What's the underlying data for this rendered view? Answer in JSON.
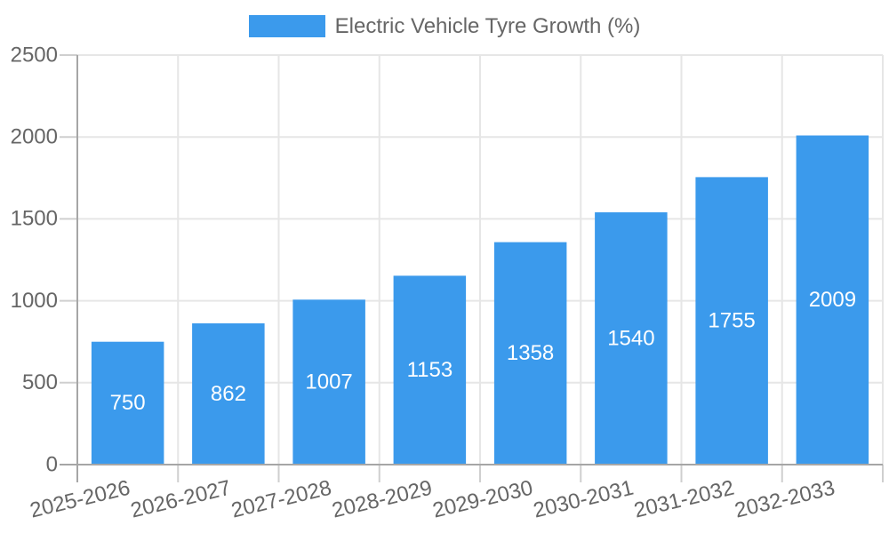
{
  "legend": {
    "label": "Electric Vehicle Tyre Growth (%)"
  },
  "chart_data": {
    "type": "bar",
    "title": "",
    "xlabel": "",
    "ylabel": "",
    "categories": [
      "2025-2026",
      "2026-2027",
      "2027-2028",
      "2028-2029",
      "2029-2030",
      "2030-2031",
      "2031-2032",
      "2032-2033"
    ],
    "series": [
      {
        "name": "Electric Vehicle Tyre Growth (%)",
        "values": [
          750,
          862,
          1007,
          1153,
          1358,
          1540,
          1755,
          2009
        ]
      }
    ],
    "value_labels": [
      "750",
      "862",
      "1007",
      "1153",
      "1358",
      "1540",
      "1755",
      "2009"
    ],
    "ylim": [
      0,
      2500
    ],
    "yticks": [
      0,
      500,
      1000,
      1500,
      2000,
      2500
    ],
    "grid": true,
    "legend_position": "top",
    "x_label_rotation_deg": -13.5,
    "colors": {
      "bar": "#3b9aec",
      "grid": "#e6e6e6",
      "tick": "#cfcfcf",
      "axis": "#a6a6a6",
      "text": "#666666",
      "value_label": "#ffffff"
    }
  }
}
